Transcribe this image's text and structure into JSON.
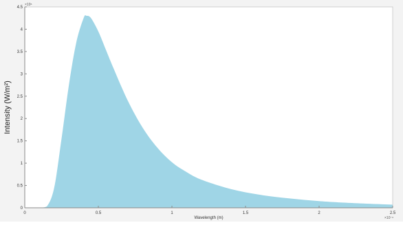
{
  "chart_data": {
    "type": "area",
    "title": "",
    "xlabel": "Wavelength (m)",
    "ylabel": "Intensity (W/m²)",
    "x_exponent_label": "×10⁻⁶",
    "y_exponent_label": "×10⁶",
    "xlim": [
      0,
      2.5
    ],
    "ylim": [
      0,
      4.5
    ],
    "x_ticks": [
      0,
      0.5,
      1,
      1.5,
      2,
      2.5
    ],
    "x_tick_labels": [
      "0",
      "0.5",
      "1",
      "1.5",
      "2",
      "2.5"
    ],
    "y_ticks": [
      0,
      0.5,
      1,
      1.5,
      2,
      2.5,
      3,
      3.5,
      4,
      4.5
    ],
    "y_tick_labels": [
      "0",
      "0.5",
      "1",
      "1.5",
      "2",
      "2.5",
      "3",
      "3.5",
      "4",
      "4.5"
    ],
    "grid": false,
    "fill_color": "#9fd5e6",
    "series": [
      {
        "x": [
          0.1,
          0.15,
          0.2,
          0.25,
          0.3,
          0.35,
          0.4,
          0.42,
          0.45,
          0.5,
          0.55,
          0.6,
          0.7,
          0.8,
          0.9,
          1.0,
          1.1,
          1.2,
          1.4,
          1.6,
          1.8,
          2.0,
          2.2,
          2.5
        ],
        "y": [
          0.0,
          0.03,
          0.45,
          1.55,
          2.75,
          3.7,
          4.25,
          4.3,
          4.25,
          3.95,
          3.55,
          3.15,
          2.4,
          1.8,
          1.35,
          1.02,
          0.8,
          0.63,
          0.42,
          0.29,
          0.21,
          0.15,
          0.11,
          0.07
        ]
      }
    ]
  }
}
